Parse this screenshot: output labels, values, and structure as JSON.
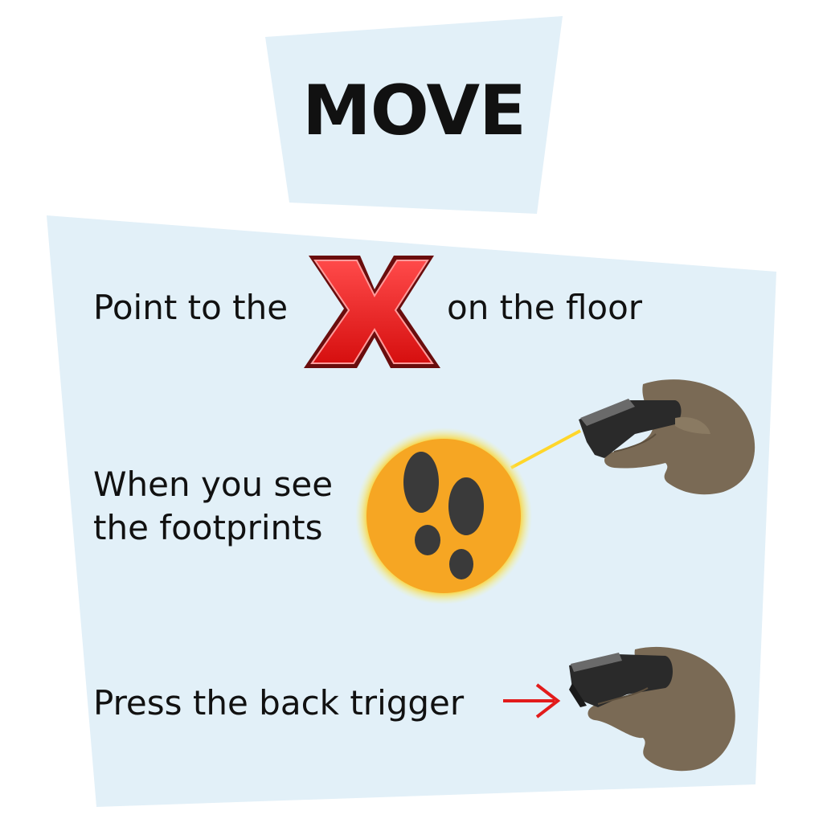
{
  "title": "MOVE",
  "steps": {
    "step1_before": "Point to the",
    "step1_after": "on the floor",
    "step2_line1": "When you see",
    "step2_line2": "the footprints",
    "step3": "Press the back trigger"
  },
  "icons": {
    "marker": "red-x-icon",
    "teleport": "footprints-icon",
    "controller": "vr-controller-hand",
    "pointer": "red-arrow-icon"
  },
  "colors": {
    "panel": "#e2f0f8",
    "x_red": "#ee1c1c",
    "x_dark": "#6a0d0d",
    "glow": "#f5a623",
    "skin": "#7a6a55",
    "controller": "#2a2a2a",
    "laser": "#ffd62a",
    "arrow": "#e21b1b"
  }
}
